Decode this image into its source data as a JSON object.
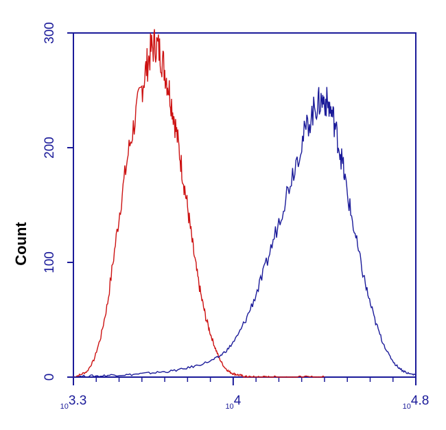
{
  "chart_data": {
    "type": "line",
    "title": "",
    "xlabel": "",
    "ylabel": "Count",
    "x_scale": "log10",
    "xlim": [
      3.3,
      4.8
    ],
    "ylim": [
      0,
      300
    ],
    "y_ticks": [
      0,
      100,
      200,
      300
    ],
    "x_ticks": [
      {
        "base": "10",
        "exp": "3.3",
        "value": 3.3
      },
      {
        "base": "10",
        "exp": "4",
        "value": 4.0
      },
      {
        "base": "10",
        "exp": "4.8",
        "value": 4.8
      }
    ],
    "grid": false,
    "legend": "none",
    "series": [
      {
        "color": "#cc1111",
        "x": [
          3.3,
          3.33,
          3.36,
          3.39,
          3.42,
          3.45,
          3.48,
          3.51,
          3.54,
          3.57,
          3.6,
          3.62,
          3.64,
          3.66,
          3.68,
          3.7,
          3.72,
          3.74,
          3.76,
          3.78,
          3.8,
          3.82,
          3.84,
          3.86,
          3.88,
          3.9,
          3.92,
          3.94,
          3.96,
          3.98,
          4.0,
          4.02,
          4.04,
          4.06,
          4.08,
          4.1,
          4.12,
          4.14,
          4.17,
          4.2,
          4.23,
          4.26,
          4.3,
          4.35,
          4.4
        ],
        "y": [
          0,
          2,
          5,
          15,
          35,
          65,
          110,
          155,
          195,
          225,
          252,
          270,
          285,
          291,
          283,
          268,
          250,
          228,
          202,
          175,
          148,
          118,
          92,
          70,
          52,
          38,
          26,
          16,
          9,
          5,
          3,
          2,
          1,
          0,
          0,
          0,
          0,
          0,
          0,
          0,
          0,
          0,
          0,
          0,
          0
        ]
      },
      {
        "color": "#1a1a99",
        "x": [
          3.3,
          3.36,
          3.42,
          3.48,
          3.54,
          3.6,
          3.66,
          3.72,
          3.78,
          3.84,
          3.9,
          3.94,
          3.98,
          4.02,
          4.06,
          4.1,
          4.14,
          4.18,
          4.22,
          4.26,
          4.3,
          4.33,
          4.36,
          4.38,
          4.4,
          4.42,
          4.44,
          4.46,
          4.48,
          4.5,
          4.53,
          4.56,
          4.59,
          4.62,
          4.65,
          4.68,
          4.71,
          4.74,
          4.77,
          4.8
        ],
        "y": [
          0,
          1,
          1,
          2,
          2,
          3,
          4,
          5,
          7,
          10,
          14,
          18,
          25,
          36,
          52,
          72,
          95,
          122,
          150,
          178,
          205,
          222,
          235,
          240,
          242,
          236,
          225,
          205,
          185,
          160,
          128,
          98,
          72,
          50,
          33,
          20,
          11,
          6,
          3,
          2
        ]
      }
    ]
  }
}
